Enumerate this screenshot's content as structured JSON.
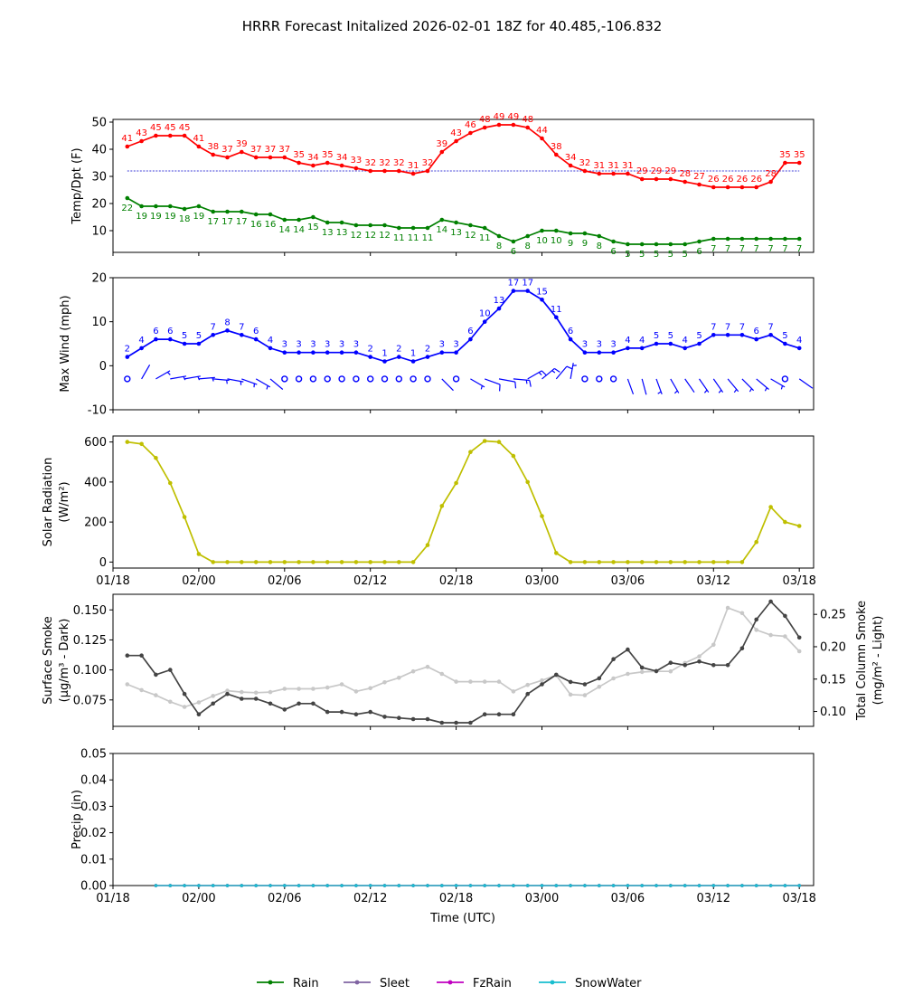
{
  "title": "HRRR Forecast Initalized 2026-02-01 18Z for 40.485,-106.832",
  "time_axis": {
    "label": "Time (UTC)",
    "ticks": [
      "01/18",
      "02/00",
      "02/06",
      "02/12",
      "02/18",
      "03/00",
      "03/06",
      "03/12",
      "03/18"
    ],
    "tick_hours": [
      0,
      6,
      12,
      18,
      24,
      30,
      36,
      42,
      48
    ]
  },
  "legend": {
    "placement": "bottom-center",
    "items": [
      {
        "label": "Rain",
        "color": "#008000"
      },
      {
        "label": "Sleet",
        "color": "#8064a2"
      },
      {
        "label": "FzRain",
        "color": "#c000c0"
      },
      {
        "label": "SnowWater",
        "color": "#17becf"
      }
    ]
  },
  "chart_data": [
    {
      "type": "line",
      "id": "temp",
      "ylabel": "Temp/Dpt (F)",
      "ylim": [
        2,
        51
      ],
      "yticks": [
        10,
        20,
        30,
        40,
        50
      ],
      "x_hours_start": 1,
      "x_hours_step": 1,
      "reference_line": {
        "value": 32,
        "color": "#0000cc"
      },
      "series": [
        {
          "name": "Temperature",
          "color": "#ff0000",
          "values": [
            41,
            43,
            45,
            45,
            45,
            41,
            38,
            37,
            39,
            37,
            37,
            37,
            35,
            34,
            35,
            34,
            33,
            32,
            32,
            32,
            31,
            32,
            39,
            43,
            46,
            48,
            49,
            49,
            48,
            44,
            38,
            34,
            32,
            31,
            31,
            31,
            29,
            29,
            29,
            28,
            27,
            26,
            26,
            26,
            26,
            28,
            35,
            35
          ],
          "labels": [
            "41",
            "43",
            "45",
            "45",
            "45",
            "41",
            "38",
            "37",
            "39",
            "37",
            "37",
            "37",
            "35",
            "34",
            "35",
            "34",
            "33",
            "32",
            "32",
            "32",
            "31",
            "32",
            "39",
            "43",
            "46",
            "48",
            "49",
            "49",
            "48",
            "44",
            "38",
            "34",
            "32",
            "31",
            "31",
            "31",
            "29",
            "29",
            "29",
            "28",
            "27",
            "26",
            "26",
            "26",
            "26",
            "28",
            "35",
            "35"
          ]
        },
        {
          "name": "Dewpoint",
          "color": "#008000",
          "values": [
            22,
            19,
            19,
            19,
            18,
            19,
            17,
            17,
            17,
            16,
            16,
            14,
            14,
            15,
            13,
            13,
            12,
            12,
            12,
            11,
            11,
            11,
            14,
            13,
            12,
            11,
            8,
            6,
            8,
            10,
            10,
            9,
            9,
            8,
            6,
            5,
            5,
            5,
            5,
            5,
            6,
            7,
            7,
            7,
            7,
            7,
            7,
            7
          ],
          "labels": [
            "22",
            "19",
            "19",
            "19",
            "18",
            "19",
            "17",
            "17",
            "17",
            "16",
            "16",
            "14",
            "14",
            "15",
            "13",
            "13",
            "12",
            "12",
            "12",
            "11",
            "11",
            "11",
            "14",
            "13",
            "12",
            "11",
            "8",
            "6",
            "8",
            "10",
            "10",
            "9",
            "9",
            "8",
            "6",
            "5",
            "5",
            "5",
            "5",
            "5",
            "6",
            "7",
            "7",
            "7",
            "7",
            "7",
            "7",
            "7"
          ]
        }
      ]
    },
    {
      "type": "line",
      "id": "wind",
      "ylabel": "Max Wind (mph)",
      "ylim": [
        -10,
        20
      ],
      "yticks": [
        -10,
        0,
        10,
        20
      ],
      "x_hours_start": 1,
      "x_hours_step": 1,
      "barb_row_value": -3,
      "series": [
        {
          "name": "Max Wind",
          "color": "#0000ff",
          "values": [
            2,
            4,
            6,
            6,
            5,
            5,
            7,
            8,
            7,
            6,
            4,
            3,
            3,
            3,
            3,
            3,
            3,
            2,
            1,
            2,
            1,
            2,
            3,
            3,
            6,
            10,
            13,
            17,
            17,
            15,
            11,
            6,
            3,
            3,
            3,
            4,
            4,
            5,
            5,
            4,
            5,
            7,
            7,
            7,
            6,
            7,
            5,
            4
          ],
          "labels": [
            "2",
            "4",
            "6",
            "6",
            "5",
            "5",
            "7",
            "8",
            "7",
            "6",
            "4",
            "3",
            "3",
            "3",
            "3",
            "3",
            "3",
            "2",
            "1",
            "2",
            "1",
            "2",
            "3",
            "3",
            "6",
            "10",
            "13",
            "17",
            "17",
            "15",
            "11",
            "6",
            "3",
            "3",
            "3",
            "4",
            "4",
            "5",
            "5",
            "4",
            "5",
            "7",
            "7",
            "7",
            "6",
            "7",
            "5",
            "4"
          ]
        }
      ]
    },
    {
      "type": "line",
      "id": "solar",
      "ylabel": "Solar Radiation (W/m²)",
      "ylim": [
        -30,
        630
      ],
      "yticks": [
        0,
        200,
        400,
        600
      ],
      "x_hours_start": 1,
      "x_hours_step": 1,
      "series": [
        {
          "name": "Solar Radiation",
          "color": "#bfbf00",
          "values": [
            600,
            590,
            520,
            395,
            225,
            40,
            0,
            0,
            0,
            0,
            0,
            0,
            0,
            0,
            0,
            0,
            0,
            0,
            0,
            0,
            0,
            85,
            280,
            395,
            550,
            605,
            600,
            530,
            400,
            230,
            45,
            0,
            0,
            0,
            0,
            0,
            0,
            0,
            0,
            0,
            0,
            0,
            0,
            0,
            100,
            275,
            200,
            180
          ]
        }
      ]
    },
    {
      "type": "line",
      "id": "smoke",
      "ylabel": "Surface Smoke (μg/m³ - Dark)",
      "ylabel_right": "Total Column Smoke (mg/m² - Light)",
      "ylim": [
        0.053,
        0.163
      ],
      "yticks": [
        0.075,
        0.1,
        0.125,
        0.15
      ],
      "ylim_right": [
        0.077,
        0.281
      ],
      "yticks_right": [
        0.1,
        0.15,
        0.2,
        0.25
      ],
      "x_hours_start": 1,
      "x_hours_step": 1,
      "series": [
        {
          "name": "Surface Smoke",
          "axis": "left",
          "color": "#444444",
          "values": [
            0.112,
            0.112,
            0.096,
            0.1,
            0.08,
            0.063,
            0.072,
            0.08,
            0.076,
            0.076,
            0.072,
            0.067,
            0.072,
            0.072,
            0.065,
            0.065,
            0.063,
            0.065,
            0.061,
            0.06,
            0.059,
            0.059,
            0.056,
            0.056,
            0.056,
            0.063,
            0.063,
            0.063,
            0.08,
            0.088,
            0.096,
            0.09,
            0.088,
            0.093,
            0.109,
            0.117,
            0.102,
            0.099,
            0.106,
            0.104,
            0.107,
            0.104,
            0.104,
            0.118,
            0.142,
            0.157,
            0.145,
            0.127
          ]
        },
        {
          "name": "Total Column Smoke",
          "axis": "right",
          "color": "#c8c8c8",
          "values": [
            0.142,
            0.133,
            0.125,
            0.115,
            0.107,
            0.114,
            0.124,
            0.132,
            0.13,
            0.129,
            0.13,
            0.135,
            0.135,
            0.135,
            0.137,
            0.142,
            0.131,
            0.136,
            0.145,
            0.152,
            0.162,
            0.169,
            0.158,
            0.146,
            0.146,
            0.146,
            0.146,
            0.131,
            0.141,
            0.148,
            0.156,
            0.126,
            0.125,
            0.138,
            0.151,
            0.158,
            0.161,
            0.162,
            0.162,
            0.175,
            0.185,
            0.203,
            0.26,
            0.252,
            0.226,
            0.218,
            0.216,
            0.193
          ]
        }
      ]
    },
    {
      "type": "line",
      "id": "precip",
      "ylabel": "Precip (in)",
      "ylim": [
        0,
        0.05
      ],
      "yticks": [
        0.0,
        0.01,
        0.02,
        0.03,
        0.04,
        0.05
      ],
      "ytick_labels": [
        "0.00",
        "0.01",
        "0.02",
        "0.03",
        "0.04",
        "0.05"
      ],
      "x_hours_start": 3,
      "x_hours_step": 1,
      "series": [
        {
          "name": "Rain",
          "color": "#008000",
          "values": [
            0,
            0,
            0,
            0,
            0,
            0,
            0,
            0,
            0,
            0,
            0,
            0,
            0,
            0,
            0,
            0,
            0,
            0,
            0,
            0,
            0,
            0,
            0,
            0,
            0,
            0,
            0,
            0,
            0,
            0,
            0,
            0,
            0,
            0,
            0,
            0,
            0,
            0,
            0,
            0,
            0,
            0,
            0,
            0,
            0,
            0
          ]
        },
        {
          "name": "Sleet",
          "color": "#8064a2",
          "values": [
            0,
            0,
            0,
            0,
            0,
            0,
            0,
            0,
            0,
            0,
            0,
            0,
            0,
            0,
            0,
            0,
            0,
            0,
            0,
            0,
            0,
            0,
            0,
            0,
            0,
            0,
            0,
            0,
            0,
            0,
            0,
            0,
            0,
            0,
            0,
            0,
            0,
            0,
            0,
            0,
            0,
            0,
            0,
            0,
            0,
            0
          ]
        },
        {
          "name": "FzRain",
          "color": "#c000c0",
          "values": [
            0,
            0,
            0,
            0,
            0,
            0,
            0,
            0,
            0,
            0,
            0,
            0,
            0,
            0,
            0,
            0,
            0,
            0,
            0,
            0,
            0,
            0,
            0,
            0,
            0,
            0,
            0,
            0,
            0,
            0,
            0,
            0,
            0,
            0,
            0,
            0,
            0,
            0,
            0,
            0,
            0,
            0,
            0,
            0,
            0,
            0
          ]
        },
        {
          "name": "SnowWater",
          "color": "#17becf",
          "values": [
            0,
            0,
            0,
            0,
            0,
            0,
            0,
            0,
            0,
            0,
            0,
            0,
            0,
            0,
            0,
            0,
            0,
            0,
            0,
            0,
            0,
            0,
            0,
            0,
            0,
            0,
            0,
            0,
            0,
            0,
            0,
            0,
            0,
            0,
            0,
            0,
            0,
            0,
            0,
            0,
            0,
            0,
            0,
            0,
            0,
            0
          ]
        }
      ]
    }
  ]
}
